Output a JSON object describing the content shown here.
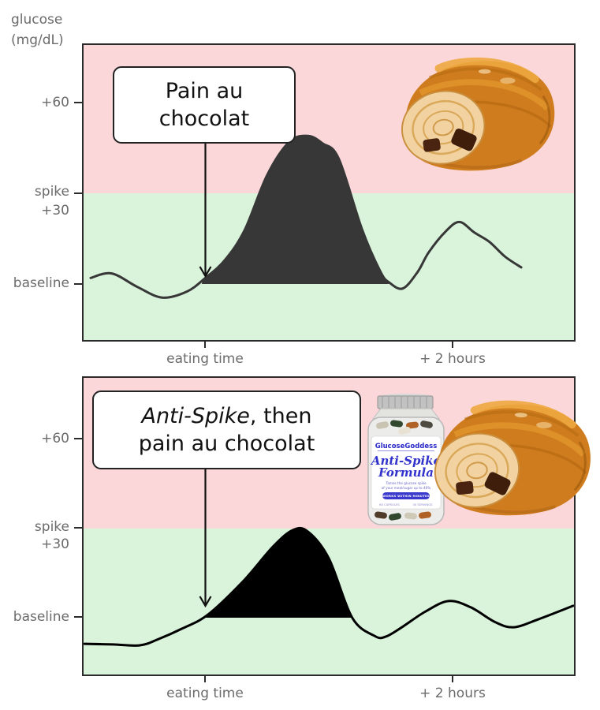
{
  "unit_label": {
    "line1": "glucose",
    "line2": "(mg/dL)"
  },
  "axis": {
    "y_labels": {
      "plus60": "+60",
      "spike": "spike",
      "plus30": "+30",
      "baseline": "baseline"
    },
    "x_labels": {
      "eating": "eating time",
      "two_hours": "+ 2 hours"
    }
  },
  "callouts": {
    "top": {
      "line1": "Pain au",
      "line2": "chocolat"
    },
    "bottom": {
      "italic": "Anti-Spike",
      "after_italic": ", then",
      "line2": "pain au chocolat"
    }
  },
  "images": {
    "pastry": "pain au chocolat pastry photo",
    "bottle": "Anti-Spike Formula supplement bottle photo"
  },
  "bottle_label": {
    "brand": "GlucoseGoddess",
    "product_line1": "Anti-Spike",
    "product_line2": "Formula",
    "tagline1": "Tames the glucose spike",
    "tagline2": "of your meal/sugar up to 40%",
    "badge": "WORKS WITHIN MINUTES",
    "bottom_left": "60 CAPSULES",
    "bottom_right": "30 SERVINGS"
  },
  "colors": {
    "zone_above_spike": "#fcd7da",
    "zone_below_spike": "#daf3db",
    "panel_border": "#2b2b2b",
    "axis_text": "#6b6b6b",
    "curve_top": "#373737",
    "curve_bottom": "#000000",
    "arrow": "#111111",
    "bottle_blue": "#3232cc"
  },
  "chart_data": [
    {
      "type": "area",
      "title": "Pain au chocolat",
      "annotation": {
        "text": "Pain au chocolat",
        "arrow_t": 0
      },
      "xlim": [
        -1,
        3
      ],
      "ylim": [
        -20,
        80
      ],
      "x_unit": "hours relative to eating time",
      "x_ticks": [
        {
          "t": 0,
          "label": "eating time"
        },
        {
          "t": 2,
          "label": "+ 2 hours"
        }
      ],
      "y_ticks": [
        {
          "v": 60,
          "label": "+60"
        },
        {
          "v": 30,
          "label": "spike +30"
        },
        {
          "v": 0,
          "label": "baseline"
        }
      ],
      "zones": {
        "spike_threshold": 30,
        "above_color": "#fcd7da",
        "below_color": "#daf3db"
      },
      "series": [
        {
          "name": "glucose delta (mg/dL)",
          "color": "#373737",
          "x": [
            -0.93,
            -0.76,
            -0.55,
            -0.35,
            -0.15,
            0,
            0.16,
            0.32,
            0.5,
            0.68,
            0.83,
            0.95,
            1.08,
            1.27,
            1.42,
            1.49,
            1.6,
            1.72,
            1.81,
            1.95,
            2.06,
            2.18,
            2.3,
            2.43,
            2.56
          ],
          "y": [
            2,
            3.5,
            -1,
            -4.5,
            -2.5,
            2,
            8,
            18,
            36,
            47,
            49,
            46.5,
            41.5,
            18,
            4,
            0.5,
            -1.5,
            4,
            10.5,
            17.5,
            20.5,
            17,
            14,
            9,
            5.5
          ]
        }
      ],
      "fill": {
        "t_range": [
          -0.03,
          1.49
        ],
        "color": "#373737",
        "meaning": "spike area above baseline"
      }
    },
    {
      "type": "area",
      "title": "Anti-Spike, then pain au chocolat",
      "annotation": {
        "text": "Anti-Spike, then pain au chocolat",
        "arrow_t": 0
      },
      "xlim": [
        -1,
        3
      ],
      "ylim": [
        -20,
        80
      ],
      "x_unit": "hours relative to eating time",
      "x_ticks": [
        {
          "t": 0,
          "label": "eating time"
        },
        {
          "t": 2,
          "label": "+ 2 hours"
        }
      ],
      "y_ticks": [
        {
          "v": 60,
          "label": "+60"
        },
        {
          "v": 30,
          "label": "spike +30"
        },
        {
          "v": 0,
          "label": "baseline"
        }
      ],
      "zones": {
        "spike_threshold": 30,
        "above_color": "#fcd7da",
        "below_color": "#daf3db"
      },
      "series": [
        {
          "name": "glucose delta (mg/dL)",
          "color": "#000000",
          "x": [
            -0.98,
            -0.75,
            -0.53,
            -0.38,
            -0.19,
            0.02,
            0.3,
            0.55,
            0.71,
            0.83,
            1.0,
            1.19,
            1.37,
            1.46,
            1.6,
            1.78,
            1.97,
            2.15,
            2.35,
            2.5,
            2.7,
            2.98
          ],
          "y": [
            -8.8,
            -9,
            -9.3,
            -7.2,
            -3.7,
            1,
            12,
            24,
            29.5,
            29,
            20,
            0,
            -6.1,
            -6.4,
            -3,
            2,
            5.6,
            3.5,
            -1.5,
            -3.2,
            -0.5,
            4
          ]
        }
      ],
      "fill": {
        "t_range": [
          0.0,
          1.19
        ],
        "color": "#000000",
        "meaning": "reduced spike area above baseline"
      }
    }
  ]
}
